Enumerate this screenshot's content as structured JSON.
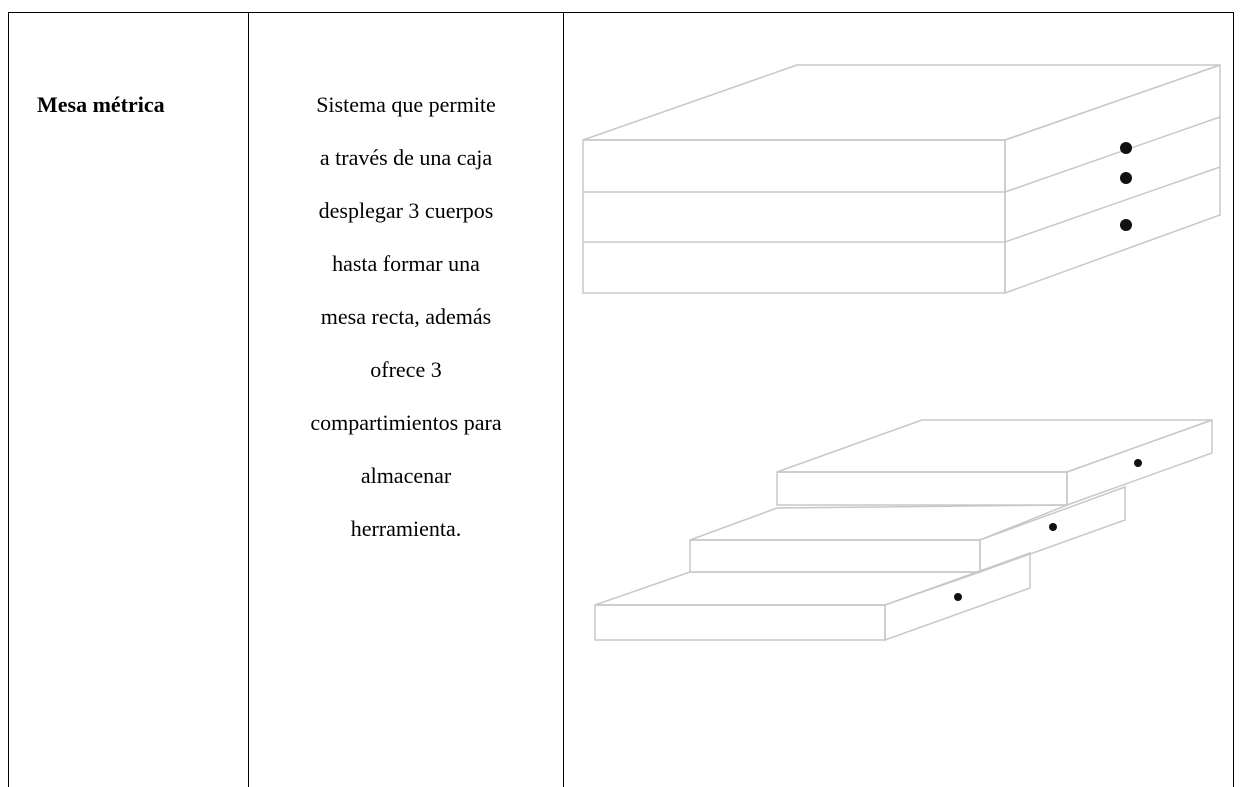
{
  "table": {
    "rows": [
      [
        "Mesa métrica",
        [
          "Sistema que permite",
          "a través de una caja",
          "desplegar 3 cuerpos",
          "hasta formar una",
          "mesa recta, además",
          "ofrece 3",
          "compartimientos para",
          "almacenar",
          "herramienta."
        ]
      ]
    ]
  }
}
